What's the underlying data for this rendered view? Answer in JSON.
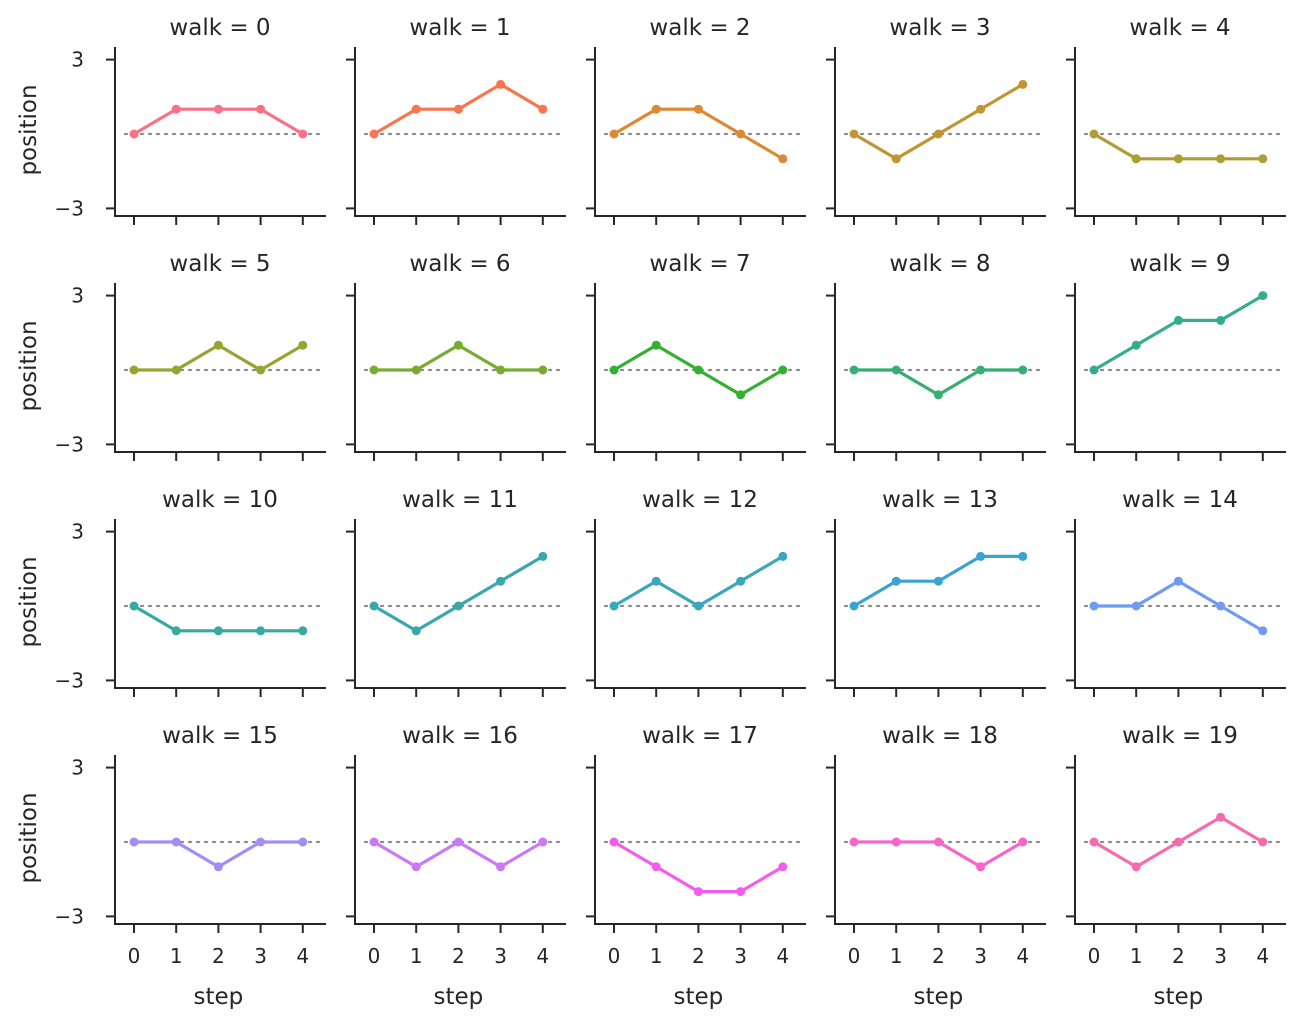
{
  "chart_data": {
    "type": "line",
    "facet_variable": "walk",
    "title_template": "walk = {walk}",
    "xlabel": "step",
    "ylabel": "position",
    "x": [
      0,
      1,
      2,
      3,
      4
    ],
    "ylim": [
      -3.5,
      3.5
    ],
    "yticks": [
      -3,
      3
    ],
    "ytick_labels": [
      "−3",
      "3"
    ],
    "xticks": [
      0,
      1,
      2,
      3,
      4
    ],
    "xtick_labels": [
      "0",
      "1",
      "2",
      "3",
      "4"
    ],
    "reference_line": {
      "y": 0,
      "style": "dotted",
      "color": "#8c8c8c"
    },
    "grid": false,
    "columns": 5,
    "panels": [
      {
        "walk": 0,
        "title": "walk = 0",
        "color": "#f77189",
        "values": [
          0,
          1,
          1,
          1,
          0
        ]
      },
      {
        "walk": 1,
        "title": "walk = 1",
        "color": "#f7754f",
        "values": [
          0,
          1,
          1,
          2,
          1
        ]
      },
      {
        "walk": 2,
        "title": "walk = 2",
        "color": "#dc8932",
        "values": [
          0,
          1,
          1,
          0,
          -1
        ]
      },
      {
        "walk": 3,
        "title": "walk = 3",
        "color": "#c39532",
        "values": [
          0,
          -1,
          0,
          1,
          2
        ]
      },
      {
        "walk": 4,
        "title": "walk = 4",
        "color": "#ae9d31",
        "values": [
          0,
          -1,
          -1,
          -1,
          -1
        ]
      },
      {
        "walk": 5,
        "title": "walk = 5",
        "color": "#97a431",
        "values": [
          0,
          0,
          1,
          0,
          1
        ]
      },
      {
        "walk": 6,
        "title": "walk = 6",
        "color": "#77ab31",
        "values": [
          0,
          0,
          1,
          0,
          0
        ]
      },
      {
        "walk": 7,
        "title": "walk = 7",
        "color": "#33b032",
        "values": [
          0,
          1,
          0,
          -1,
          0
        ]
      },
      {
        "walk": 8,
        "title": "walk = 8",
        "color": "#34ae72",
        "values": [
          0,
          0,
          -1,
          0,
          0
        ]
      },
      {
        "walk": 9,
        "title": "walk = 9",
        "color": "#35ac8f",
        "values": [
          0,
          1,
          2,
          2,
          3
        ]
      },
      {
        "walk": 10,
        "title": "walk = 10",
        "color": "#36aaa0",
        "values": [
          0,
          -1,
          -1,
          -1,
          -1
        ]
      },
      {
        "walk": 11,
        "title": "walk = 11",
        "color": "#38a8ad",
        "values": [
          0,
          -1,
          0,
          1,
          2
        ]
      },
      {
        "walk": 12,
        "title": "walk = 12",
        "color": "#39a7bc",
        "values": [
          0,
          1,
          0,
          1,
          2
        ]
      },
      {
        "walk": 13,
        "title": "walk = 13",
        "color": "#3ba3d2",
        "values": [
          0,
          1,
          1,
          2,
          2
        ]
      },
      {
        "walk": 14,
        "title": "walk = 14",
        "color": "#6e9bf4",
        "values": [
          0,
          0,
          1,
          0,
          -1
        ]
      },
      {
        "walk": 15,
        "title": "walk = 15",
        "color": "#a48cf4",
        "values": [
          0,
          0,
          -1,
          0,
          0
        ]
      },
      {
        "walk": 16,
        "title": "walk = 16",
        "color": "#cc7af4",
        "values": [
          0,
          -1,
          0,
          -1,
          0
        ]
      },
      {
        "walk": 17,
        "title": "walk = 17",
        "color": "#f45deb",
        "values": [
          0,
          -1,
          -2,
          -2,
          -1
        ]
      },
      {
        "walk": 18,
        "title": "walk = 18",
        "color": "#f565cc",
        "values": [
          0,
          0,
          0,
          -1,
          0
        ]
      },
      {
        "walk": 19,
        "title": "walk = 19",
        "color": "#f66bad",
        "values": [
          0,
          -1,
          0,
          1,
          0
        ]
      }
    ]
  }
}
